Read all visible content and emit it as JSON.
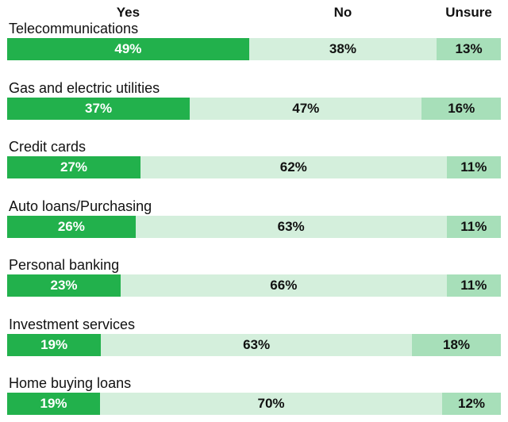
{
  "chart_data": {
    "type": "bar",
    "orientation": "horizontal",
    "stacked": true,
    "title": "",
    "xlabel": "",
    "ylabel": "",
    "xlim": [
      0,
      100
    ],
    "legend_position": "top",
    "categories": [
      "Telecommunications",
      "Gas and electric utilities",
      "Credit cards",
      "Auto loans/Purchasing",
      "Personal banking",
      "Investment services",
      "Home buying loans"
    ],
    "series": [
      {
        "name": "Yes",
        "color": "#22b14c",
        "values": [
          49,
          37,
          27,
          26,
          23,
          19,
          19
        ]
      },
      {
        "name": "No",
        "color": "#d4efdc",
        "values": [
          38,
          47,
          62,
          63,
          66,
          63,
          70
        ]
      },
      {
        "name": "Unsure",
        "color": "#a7dfb9",
        "values": [
          13,
          16,
          11,
          11,
          11,
          18,
          12
        ]
      }
    ],
    "value_suffix": "%"
  }
}
